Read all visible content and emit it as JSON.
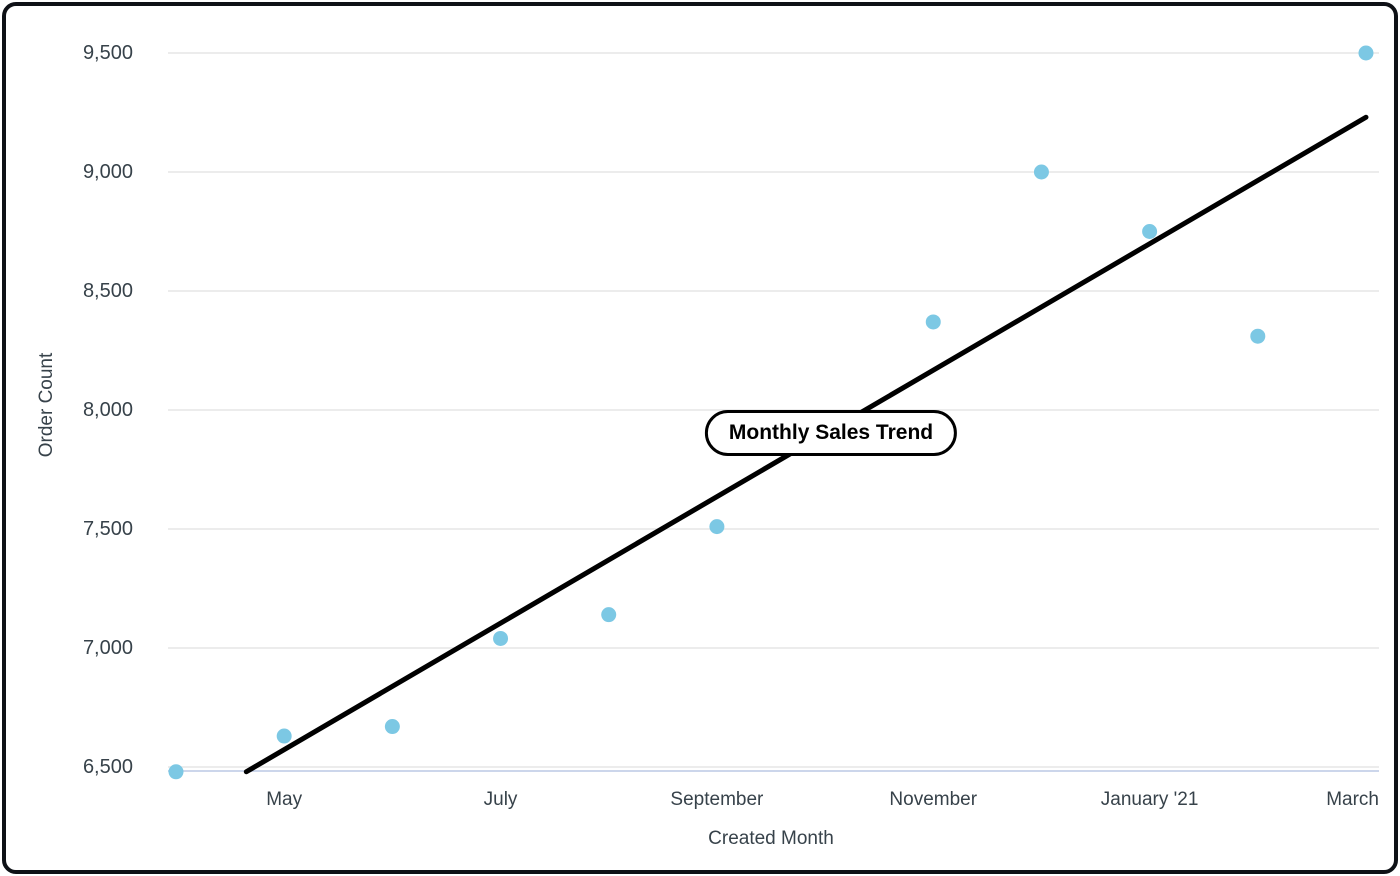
{
  "chart_data": {
    "type": "scatter",
    "title": "Monthly Sales Trend",
    "xlabel": "Created Month",
    "ylabel": "Order Count",
    "ylim": [
      6470,
      9600
    ],
    "grid": true,
    "legend": "none",
    "y_ticks": [
      {
        "label": "6,500",
        "value": 6500
      },
      {
        "label": "7,000",
        "value": 7000
      },
      {
        "label": "7,500",
        "value": 7500
      },
      {
        "label": "8,000",
        "value": 8000
      },
      {
        "label": "8,500",
        "value": 8500
      },
      {
        "label": "9,000",
        "value": 9000
      },
      {
        "label": "9,500",
        "value": 9500
      }
    ],
    "x_ticks": [
      {
        "label": "May",
        "month_index": 1
      },
      {
        "label": "July",
        "month_index": 3
      },
      {
        "label": "September",
        "month_index": 5
      },
      {
        "label": "November",
        "month_index": 7
      },
      {
        "label": "January '21",
        "month_index": 9
      },
      {
        "label": "March",
        "month_index": 11,
        "align": "right"
      }
    ],
    "points": [
      {
        "month": "April",
        "value": 6480
      },
      {
        "month": "May",
        "value": 6630
      },
      {
        "month": "June",
        "value": 6670
      },
      {
        "month": "July",
        "value": 7040
      },
      {
        "month": "August",
        "value": 7140
      },
      {
        "month": "September",
        "value": 7510
      },
      {
        "month": "October",
        "value": null
      },
      {
        "month": "November",
        "value": 8370
      },
      {
        "month": "December",
        "value": 9000
      },
      {
        "month": "January '21",
        "value": 8750
      },
      {
        "month": "February",
        "value": 8310
      },
      {
        "month": "March",
        "value": 9500
      }
    ],
    "trend_line": {
      "start": {
        "month_index": 0.65,
        "value": 6480
      },
      "end": {
        "month_index": 11.0,
        "value": 9230
      }
    },
    "colors": {
      "point": "#7cc8e4",
      "trend": "#000000",
      "grid": "#e6e6e6",
      "axis_line": "#ccd6eb",
      "text": "#37424a",
      "annotation_border": "#000000",
      "background": "#ffffff",
      "frame": "#0e1116"
    }
  }
}
